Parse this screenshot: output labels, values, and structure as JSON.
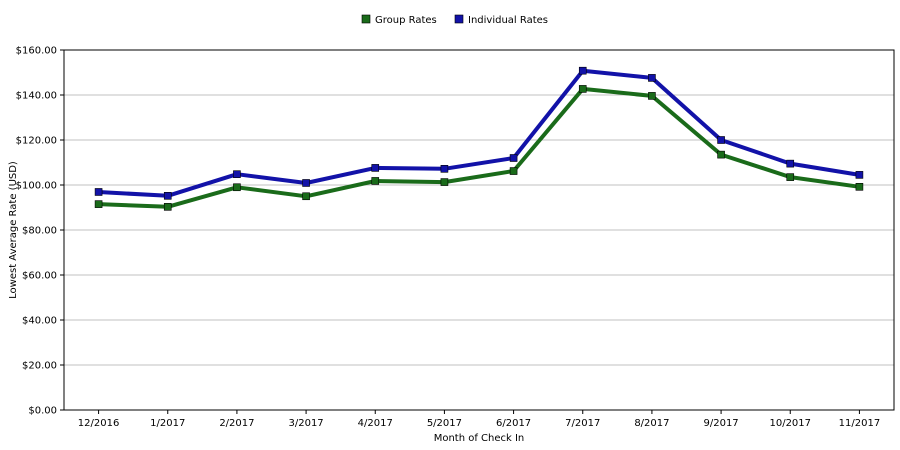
{
  "chart_data": {
    "type": "line",
    "categories": [
      "12/2016",
      "1/2017",
      "2/2017",
      "3/2017",
      "4/2017",
      "5/2017",
      "6/2017",
      "7/2017",
      "8/2017",
      "9/2017",
      "10/2017",
      "11/2017"
    ],
    "series": [
      {
        "name": "Group Rates",
        "color": "#1a6b1a",
        "values": [
          91.5,
          90.3,
          99.0,
          95.0,
          101.8,
          101.3,
          106.2,
          142.7,
          139.6,
          113.5,
          103.5,
          99.2
        ]
      },
      {
        "name": "Individual Rates",
        "color": "#1212a8",
        "values": [
          96.9,
          95.2,
          104.8,
          100.9,
          107.6,
          107.2,
          112.0,
          150.8,
          147.6,
          120.0,
          109.5,
          104.5
        ]
      }
    ],
    "title": "",
    "xlabel": "Month of Check In",
    "ylabel": "Lowest Average Rate (USD)",
    "ylim": [
      0,
      160
    ],
    "yticks": [
      0,
      20,
      40,
      60,
      80,
      100,
      120,
      140,
      160
    ],
    "ytick_labels": [
      "$0.00",
      "$20.00",
      "$40.00",
      "$60.00",
      "$80.00",
      "$100.00",
      "$120.00",
      "$140.00",
      "$160.00"
    ],
    "grid": true,
    "legend_position": "top-center"
  }
}
